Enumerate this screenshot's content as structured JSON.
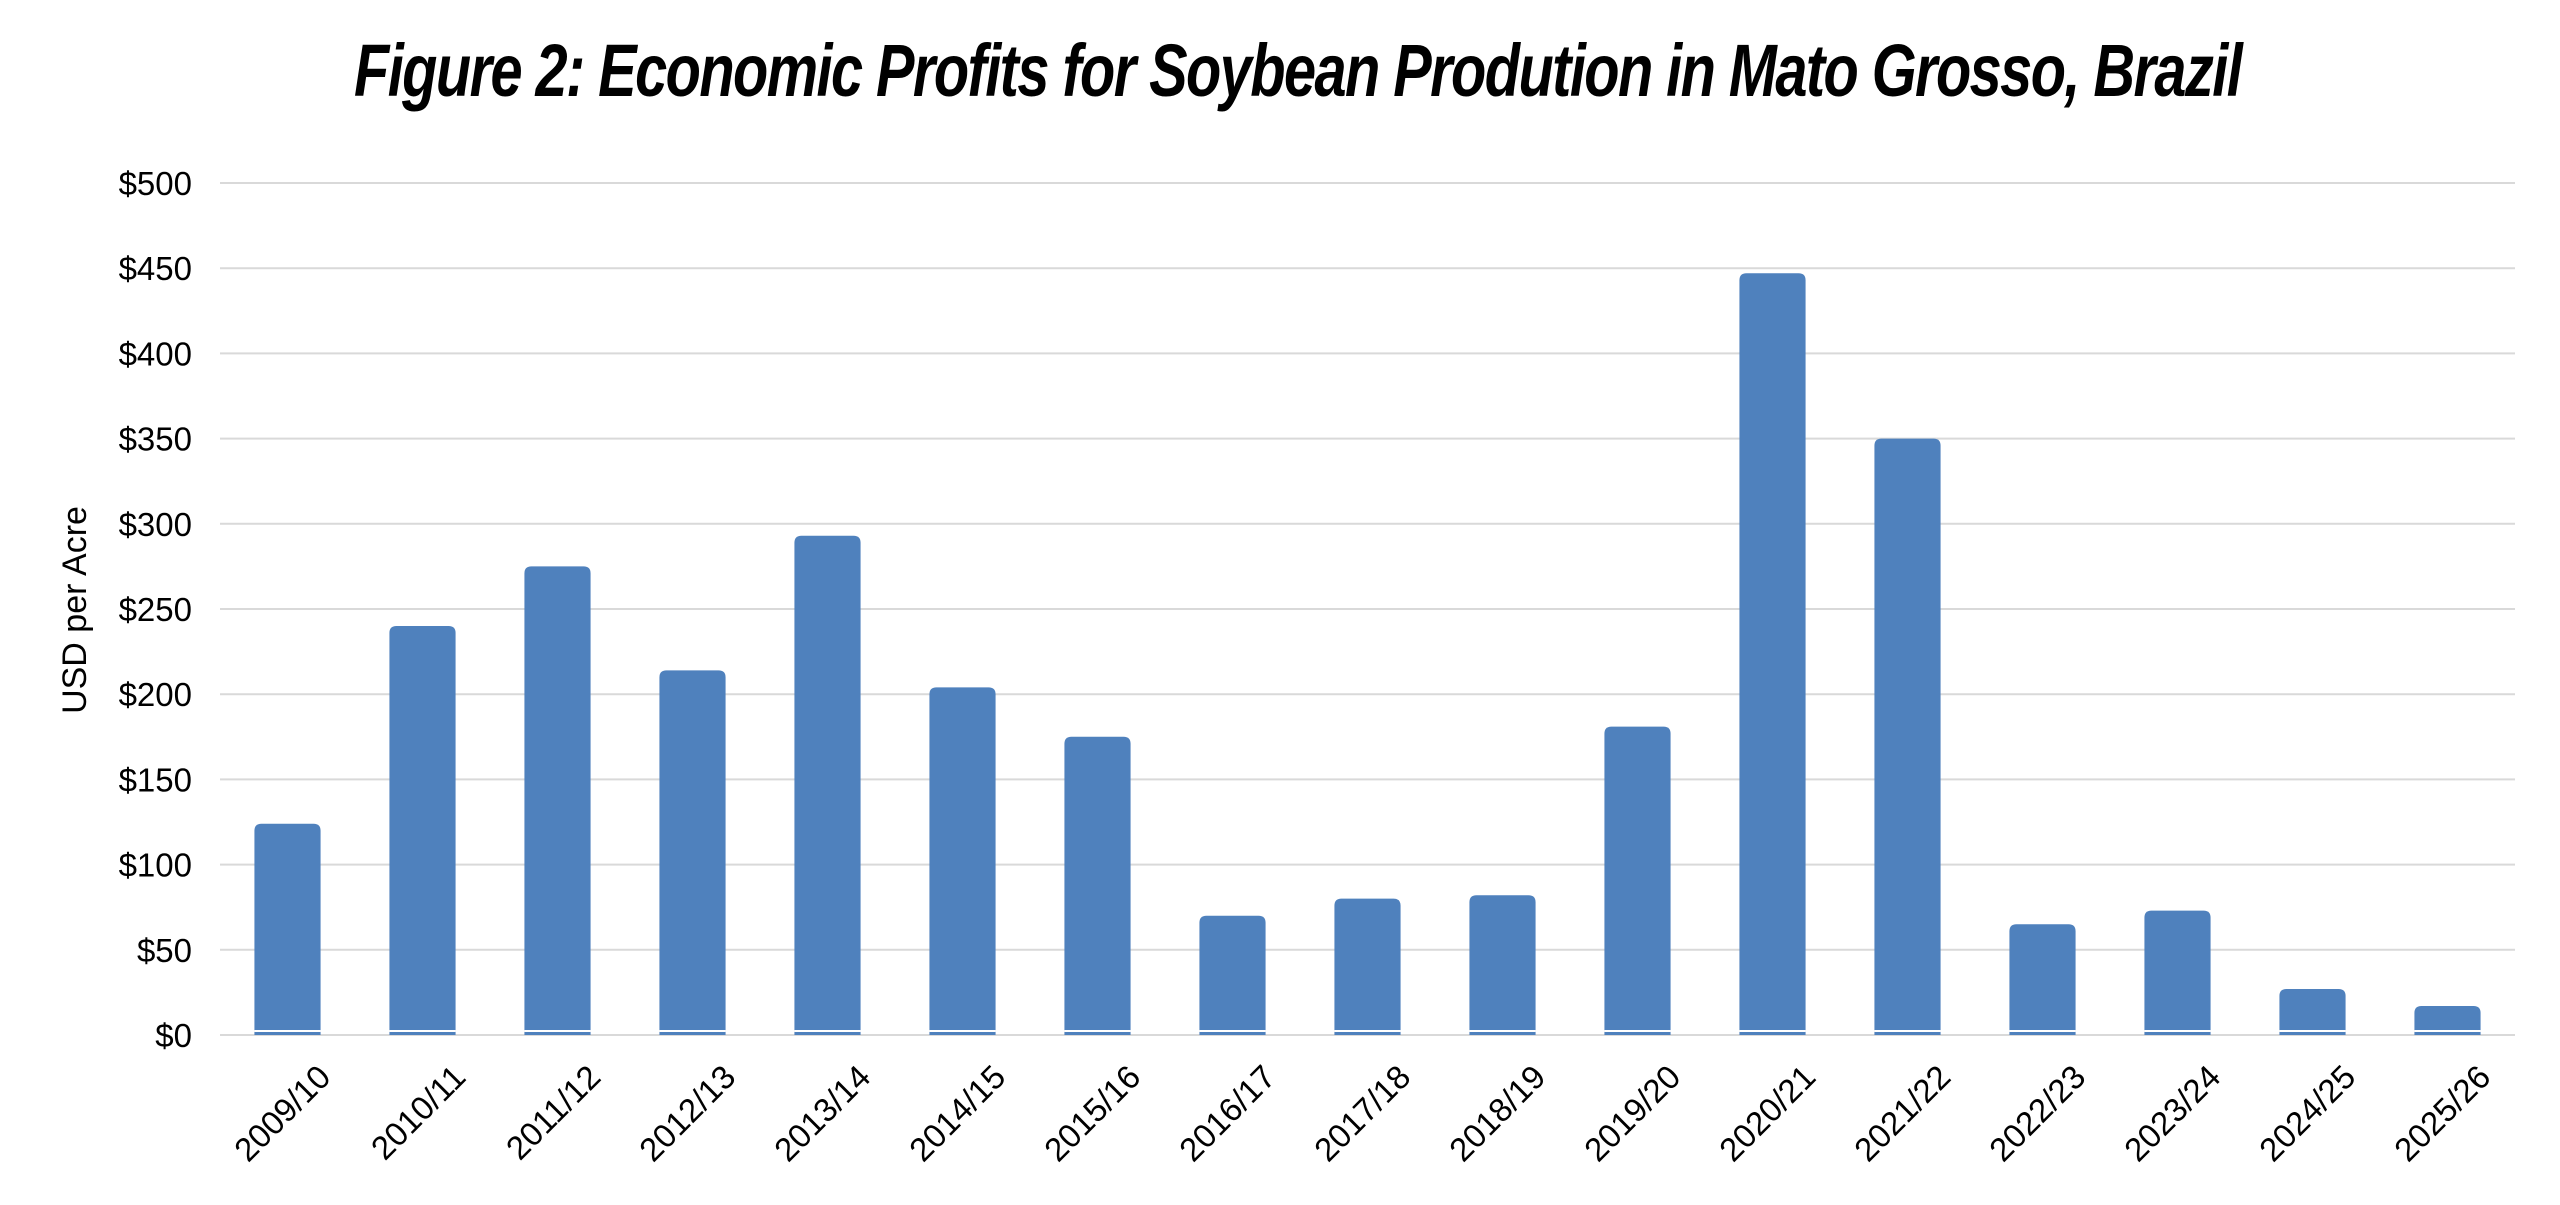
{
  "chart_data": {
    "type": "bar",
    "title": "Figure 2: Economic Profits for Soybean Prodution in Mato Grosso, Brazil",
    "xlabel": "",
    "ylabel": "USD per Acre",
    "ylim": [
      0,
      500
    ],
    "ytick_step": 50,
    "ytick_prefix": "$",
    "grid": true,
    "legend": "none",
    "bar_color": "#4f81bd",
    "grid_color": "#d9d9d9",
    "categories": [
      "2009/10",
      "2010/11",
      "2011/12",
      "2012/13",
      "2013/14",
      "2014/15",
      "2015/16",
      "2016/17",
      "2017/18",
      "2018/19",
      "2019/20",
      "2020/21",
      "2021/22",
      "2022/23",
      "2023/24",
      "2024/25",
      "2025/26"
    ],
    "values": [
      124,
      240,
      275,
      214,
      293,
      204,
      175,
      70,
      80,
      82,
      181,
      447,
      350,
      65,
      73,
      27,
      17
    ]
  }
}
